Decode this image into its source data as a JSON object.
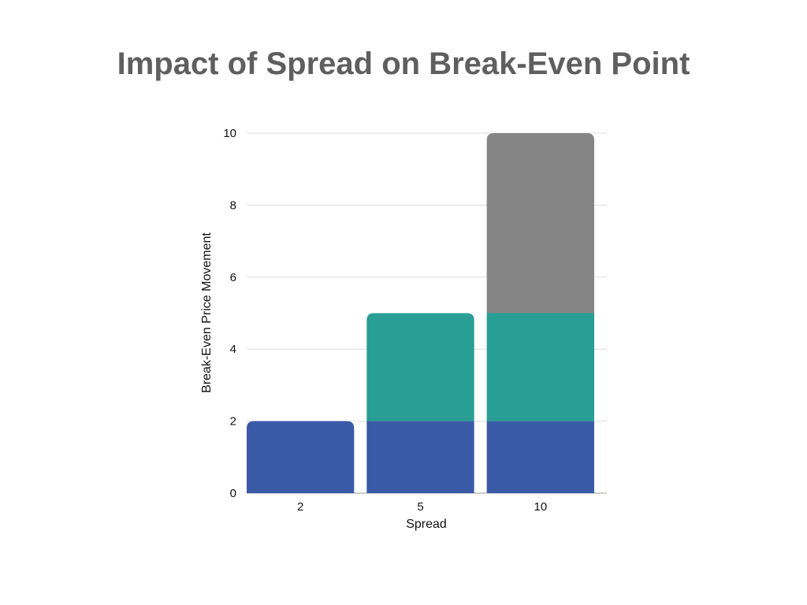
{
  "chart_data": {
    "type": "bar",
    "stacked": true,
    "title": "Impact of Spread on Break-Even Point",
    "xlabel": "Spread",
    "ylabel": "Break-Even Price Movement",
    "categories": [
      "2",
      "5",
      "10"
    ],
    "series": [
      {
        "color": "#3a5aa8",
        "values": [
          2,
          2,
          2
        ]
      },
      {
        "color": "#289e94",
        "values": [
          0,
          3,
          3
        ]
      },
      {
        "color": "#858585",
        "values": [
          0,
          0,
          5
        ]
      }
    ],
    "ylim": [
      0,
      10
    ],
    "yticks": [
      0,
      2,
      4,
      6,
      8,
      10
    ],
    "grid": true,
    "legend": "none"
  }
}
